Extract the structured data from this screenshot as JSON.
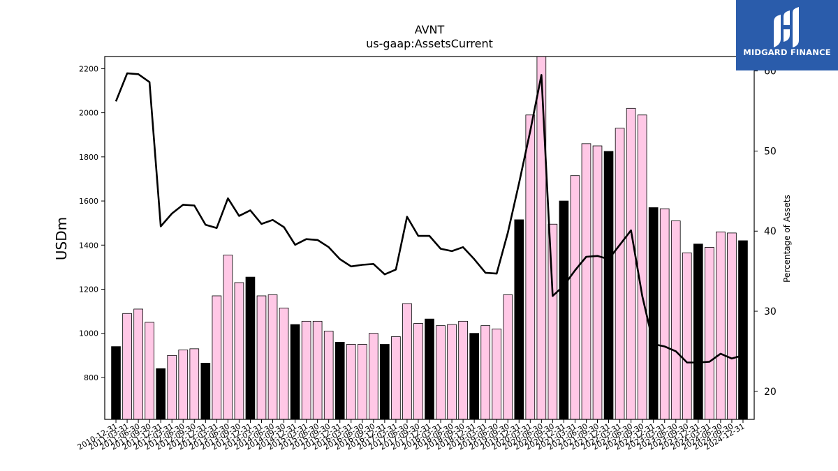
{
  "chart_data": {
    "type": "bar",
    "title": "AVNT",
    "subtitle": "us-gaap:AssetsCurrent",
    "ylabel": "USDm",
    "y2label": "Percentage of Assets",
    "ylim": [
      610,
      2255
    ],
    "y2lim": [
      16.5,
      61.8
    ],
    "yticks": [
      800,
      1000,
      1200,
      1400,
      1600,
      1800,
      2000,
      2200
    ],
    "y2ticks": [
      20,
      30,
      40,
      50,
      60
    ],
    "categories": [
      "2010-12-31",
      "2011-03-31",
      "2011-06-30",
      "2011-09-30",
      "2011-12-31",
      "2012-03-31",
      "2012-06-30",
      "2012-09-30",
      "2012-12-31",
      "2013-03-31",
      "2013-06-30",
      "2013-09-30",
      "2013-12-31",
      "2014-03-31",
      "2014-06-30",
      "2014-09-30",
      "2014-12-31",
      "2015-03-31",
      "2015-06-30",
      "2015-09-30",
      "2015-12-31",
      "2016-03-31",
      "2016-06-30",
      "2016-09-30",
      "2016-12-31",
      "2017-03-31",
      "2017-06-30",
      "2017-09-30",
      "2017-12-31",
      "2018-03-31",
      "2018-06-30",
      "2018-09-30",
      "2018-12-31",
      "2019-03-31",
      "2019-06-30",
      "2019-09-30",
      "2019-12-31",
      "2020-03-31",
      "2020-06-30",
      "2020-09-30",
      "2020-12-31",
      "2021-03-31",
      "2021-06-30",
      "2021-09-30",
      "2021-12-31",
      "2022-03-31",
      "2022-06-30",
      "2022-09-30",
      "2022-12-31",
      "2023-03-31",
      "2023-06-30",
      "2023-09-30",
      "2023-12-31",
      "2024-03-31",
      "2024-06-30",
      "2024-09-30",
      "2024-12-31"
    ],
    "series": [
      {
        "kind": "bar",
        "values": [
          940,
          1090,
          1110,
          1050,
          840,
          900,
          925,
          930,
          865,
          1170,
          1355,
          1230,
          1255,
          1170,
          1175,
          1115,
          1040,
          1055,
          1055,
          1010,
          960,
          950,
          950,
          1000,
          950,
          985,
          1135,
          1045,
          1065,
          1035,
          1040,
          1055,
          1000,
          1035,
          1020,
          1175,
          1515,
          1990,
          2260,
          1495,
          1600,
          1715,
          1860,
          1850,
          1825,
          1930,
          2020,
          1990,
          1570,
          1565,
          1510,
          1365,
          1405,
          1390,
          1460,
          1455,
          1420
        ],
        "highlight": [
          true,
          false,
          false,
          false,
          true,
          false,
          false,
          false,
          true,
          false,
          false,
          false,
          true,
          false,
          false,
          false,
          true,
          false,
          false,
          false,
          true,
          false,
          false,
          false,
          true,
          false,
          false,
          false,
          true,
          false,
          false,
          false,
          true,
          false,
          false,
          false,
          true,
          false,
          false,
          false,
          true,
          false,
          false,
          false,
          true,
          false,
          false,
          false,
          true,
          false,
          false,
          false,
          true,
          false,
          false,
          false,
          true
        ]
      },
      {
        "kind": "line",
        "axis": "right",
        "values": [
          56.2,
          59.7,
          59.6,
          58.6,
          40.6,
          42.2,
          43.3,
          43.2,
          40.8,
          40.4,
          44.1,
          41.9,
          42.6,
          40.9,
          41.4,
          40.5,
          38.3,
          39.0,
          38.9,
          38.0,
          36.5,
          35.6,
          35.8,
          35.9,
          34.6,
          35.2,
          41.8,
          39.4,
          39.4,
          37.8,
          37.5,
          38.0,
          36.5,
          34.8,
          34.7,
          39.8,
          46.0,
          52.5,
          59.5,
          31.9,
          33.2,
          35.1,
          36.8,
          36.9,
          36.5,
          38.3,
          40.1,
          31.9,
          25.9,
          25.6,
          25.0,
          23.6,
          23.6,
          23.7,
          24.7,
          24.1,
          24.5
        ]
      }
    ],
    "colors": {
      "bar_default": "#ffc8e6",
      "bar_highlight": "#000000",
      "bar_edge": "#000000",
      "line": "#000000"
    },
    "grid": false
  },
  "logo": {
    "text": "MIDGARD FINANCE",
    "icon": "midgard-logo-icon"
  }
}
